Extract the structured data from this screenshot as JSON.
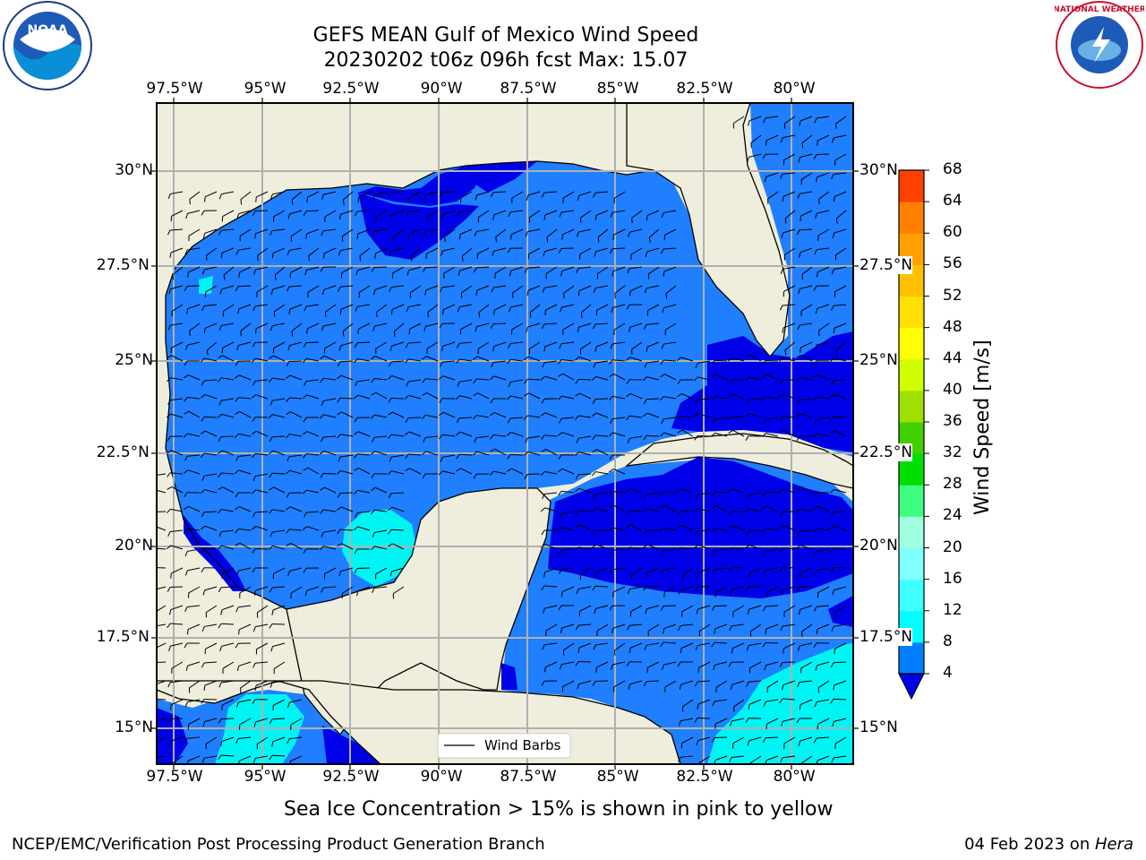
{
  "header": {
    "title_line1": "GEFS MEAN Gulf of Mexico Wind Speed",
    "title_line2": "20230202 t06z 096h fcst   Max: 15.07"
  },
  "logos": {
    "left": "NOAA",
    "right": "National Weather Service"
  },
  "axes": {
    "lon_labels": [
      "97.5°W",
      "95°W",
      "92.5°W",
      "90°W",
      "87.5°W",
      "85°W",
      "82.5°W",
      "80°W"
    ],
    "lat_labels_left": [
      "30°N",
      "27.5°N",
      "25°N",
      "22.5°N",
      "20°N",
      "17.5°N",
      "15°N"
    ],
    "lat_labels_right": [
      "30°N",
      "27.5°N",
      "25°N",
      "22.5°N",
      "20°N",
      "17.5°N",
      "15°N"
    ]
  },
  "legend": {
    "label": "Wind Barbs"
  },
  "colorbar": {
    "title": "Wind Speed [m/s]",
    "ticks": [
      "4",
      "8",
      "12",
      "16",
      "20",
      "24",
      "28",
      "32",
      "36",
      "40",
      "44",
      "48",
      "52",
      "56",
      "60",
      "64",
      "68"
    ],
    "colors": [
      "#0080ff",
      "#00ffff",
      "#40ffff",
      "#80ffff",
      "#a0ffe0",
      "#40ff80",
      "#00e000",
      "#40d000",
      "#a0e000",
      "#d0ff00",
      "#ffff00",
      "#ffe000",
      "#ffc000",
      "#ffa000",
      "#ff8000",
      "#ff4000",
      "#ff0000"
    ],
    "under_color": "#0000e8"
  },
  "caption": "Sea Ice Concentration > 15% is shown in pink to yellow",
  "footer": {
    "left": "NCEP/EMC/Verification Post Processing Product Generation Branch",
    "right_date": "04 Feb 2023 on ",
    "right_host": "Hera"
  },
  "colors": {
    "land": "#efeedd",
    "ocean_mid": "#1f7fff",
    "ocean_low": "#0000e8",
    "ocean_high": "#00f4f4",
    "grid": "#b0b0b0"
  }
}
